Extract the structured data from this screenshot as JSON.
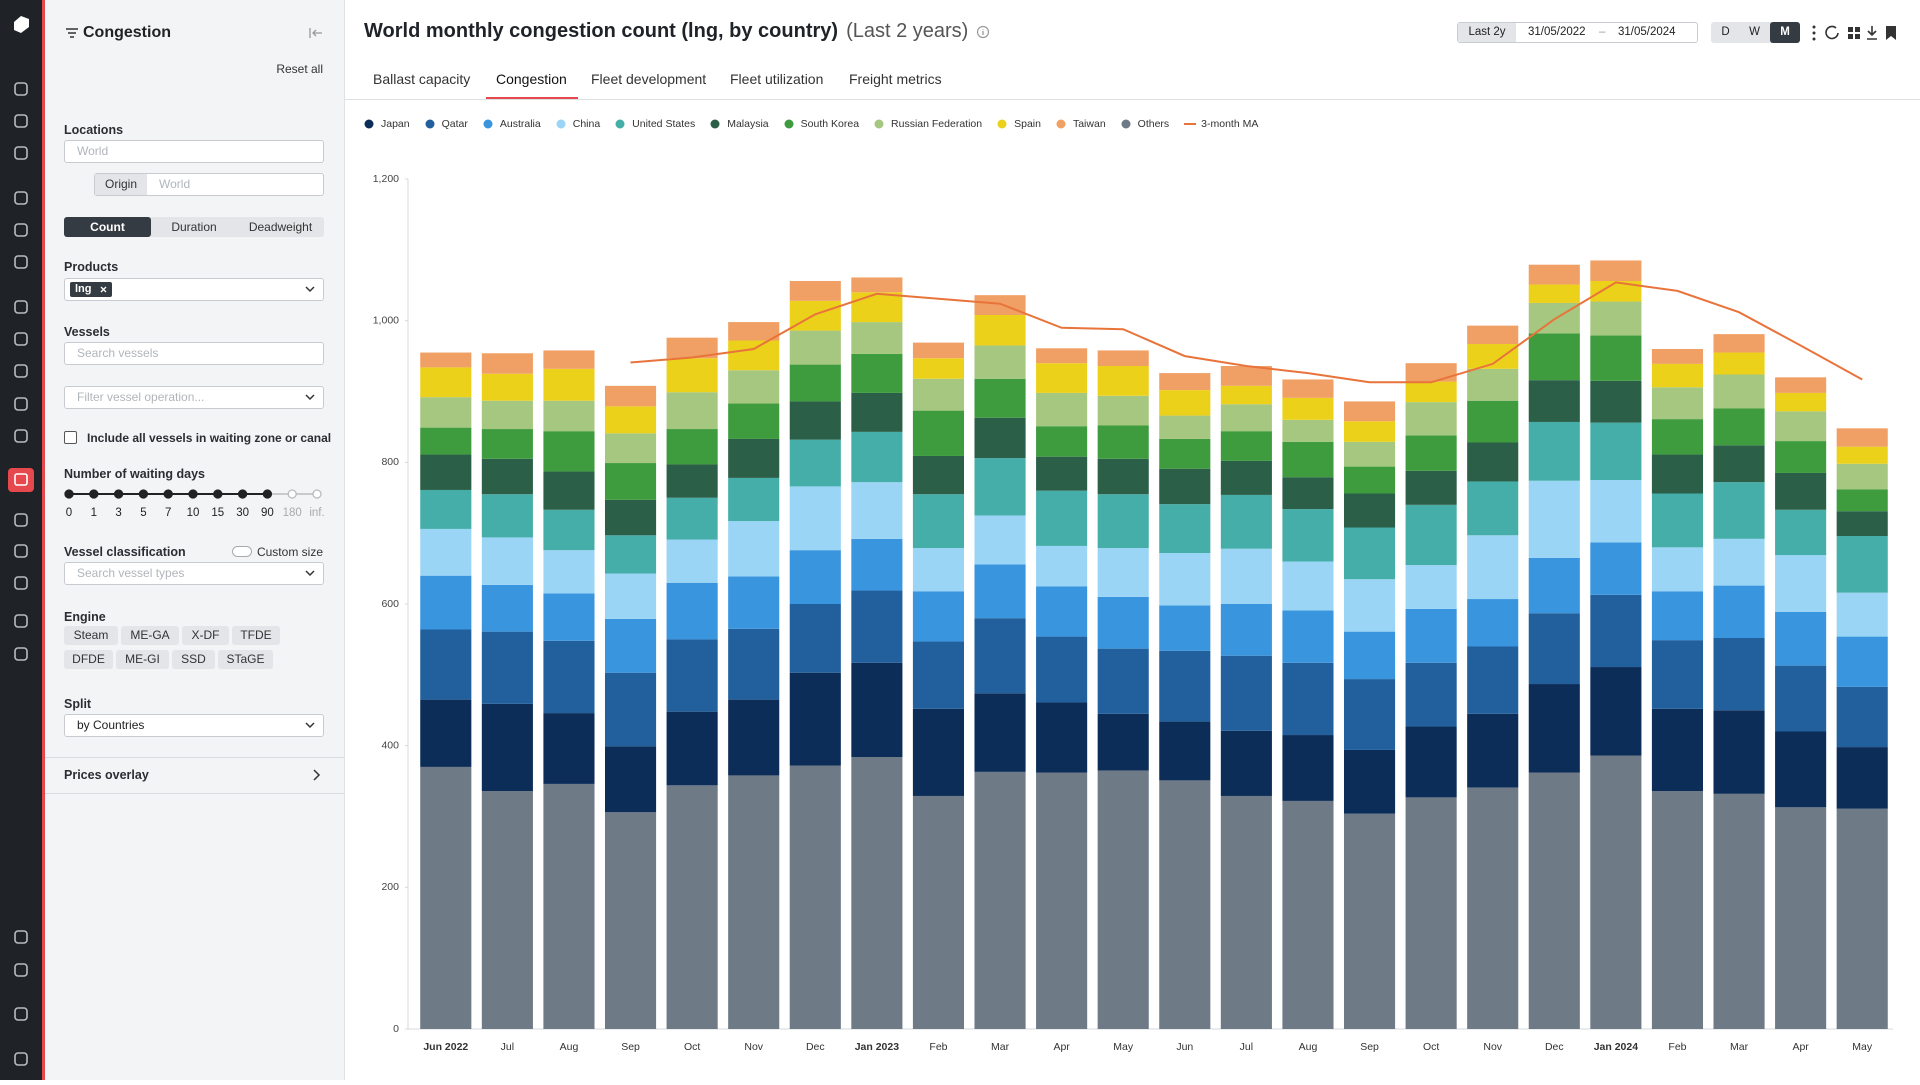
{
  "header": {
    "title": "World monthly congestion count (lng, by country)",
    "subtitle": "(Last 2 years)",
    "range": "Last 2y",
    "start": "31/05/2022",
    "dash": "–",
    "end": "31/05/2024",
    "granularity": [
      "D",
      "W",
      "M"
    ]
  },
  "tabs": [
    "Ballast capacity",
    "Congestion",
    "Fleet development",
    "Fleet utilization",
    "Freight metrics"
  ],
  "panel": {
    "title": "Congestion",
    "reset": "Reset all",
    "locations": "Locations",
    "location_placeholder": "World",
    "origin": "Origin",
    "origin_placeholder": "World",
    "metrics": [
      "Count",
      "Duration",
      "Deadweight"
    ],
    "products": "Products",
    "product_tag": "lng",
    "vessels": "Vessels",
    "vessel_search": "Search vessels",
    "operation_filter": "Filter vessel operation...",
    "checkbox": "Include all vessels in waiting zone or canal",
    "waiting_days": "Number of waiting days",
    "days": [
      "0",
      "1",
      "3",
      "5",
      "7",
      "10",
      "15",
      "30",
      "90",
      "180",
      "inf."
    ],
    "classification": "Vessel classification",
    "custom_size": "Custom size",
    "type_search": "Search vessel types",
    "engine": "Engine",
    "engines": [
      "Steam",
      "ME-GA",
      "X-DF",
      "TFDE",
      "DFDE",
      "ME-GI",
      "SSD",
      "STaGE"
    ],
    "split": "Split",
    "split_value": "by Countries",
    "prices_overlay": "Prices overlay"
  },
  "chart_data": {
    "type": "bar",
    "stacked": true,
    "categories": [
      "Jun 2022",
      "Jul",
      "Aug",
      "Sep",
      "Oct",
      "Nov",
      "Dec",
      "Jan 2023",
      "Feb",
      "Mar",
      "Apr",
      "May",
      "Jun",
      "Jul",
      "Aug",
      "Sep",
      "Oct",
      "Nov",
      "Dec",
      "Jan 2024",
      "Feb",
      "Mar",
      "Apr",
      "May"
    ],
    "ylim": [
      0,
      1200
    ],
    "yticks": [
      0,
      200,
      400,
      600,
      800,
      {
        "value": 1000,
        "label": "1,000"
      },
      {
        "value": 1200,
        "label": "1,200"
      }
    ],
    "series": [
      {
        "name": "Japan",
        "color": "#0c2d57",
        "values": [
          95,
          123,
          100,
          93,
          104,
          107,
          131,
          133,
          123,
          111,
          99,
          80,
          83,
          92,
          93,
          90,
          100,
          104,
          125,
          125,
          116,
          118,
          107,
          87
        ]
      },
      {
        "name": "Qatar",
        "color": "#22609d",
        "values": [
          99,
          102,
          102,
          104,
          102,
          100,
          97,
          102,
          95,
          106,
          93,
          92,
          100,
          106,
          102,
          100,
          90,
          95,
          100,
          102,
          97,
          102,
          93,
          85
        ]
      },
      {
        "name": "Australia",
        "color": "#3a95df",
        "values": [
          76,
          66,
          67,
          76,
          80,
          74,
          76,
          73,
          71,
          76,
          71,
          73,
          64,
          73,
          74,
          67,
          76,
          67,
          78,
          74,
          69,
          74,
          76,
          71
        ]
      },
      {
        "name": "China",
        "color": "#9ad5f6",
        "values": [
          66,
          67,
          61,
          64,
          61,
          78,
          90,
          80,
          61,
          69,
          57,
          69,
          74,
          78,
          69,
          74,
          62,
          90,
          109,
          88,
          62,
          66,
          80,
          62
        ]
      },
      {
        "name": "United States",
        "color": "#45aea9",
        "values": [
          55,
          61,
          57,
          54,
          59,
          61,
          66,
          71,
          76,
          81,
          78,
          76,
          69,
          76,
          74,
          73,
          85,
          76,
          83,
          81,
          76,
          80,
          64,
          80
        ]
      },
      {
        "name": "Malaysia",
        "color": "#2b5f47",
        "values": [
          50,
          50,
          54,
          50,
          47,
          55,
          54,
          55,
          54,
          57,
          48,
          50,
          50,
          48,
          45,
          48,
          48,
          55,
          59,
          59,
          55,
          52,
          52,
          35
        ]
      },
      {
        "name": "South Korea",
        "color": "#3e9c3f",
        "values": [
          38,
          42,
          57,
          52,
          50,
          50,
          52,
          55,
          64,
          55,
          43,
          47,
          42,
          42,
          50,
          38,
          50,
          59,
          66,
          64,
          50,
          52,
          45,
          31
        ]
      },
      {
        "name": "Russian Federation",
        "color": "#a6c77f",
        "values": [
          43,
          40,
          43,
          42,
          52,
          47,
          48,
          45,
          45,
          47,
          47,
          42,
          33,
          38,
          31,
          35,
          47,
          45,
          43,
          48,
          45,
          48,
          42,
          36
        ]
      },
      {
        "name": "Spain",
        "color": "#ecd11b",
        "values": [
          42,
          38,
          45,
          38,
          48,
          42,
          42,
          42,
          29,
          43,
          42,
          42,
          36,
          26,
          31,
          29,
          29,
          35,
          26,
          29,
          33,
          31,
          26,
          24
        ]
      },
      {
        "name": "Taiwan",
        "color": "#f0a065",
        "values": [
          21,
          29,
          26,
          29,
          29,
          26,
          28,
          21,
          22,
          28,
          21,
          22,
          24,
          28,
          26,
          28,
          26,
          26,
          28,
          29,
          21,
          26,
          22,
          26
        ]
      },
      {
        "name": "Others",
        "color": "#6f7a87",
        "values": [
          370,
          336,
          346,
          306,
          344,
          358,
          372,
          384,
          329,
          363,
          362,
          365,
          351,
          329,
          322,
          304,
          327,
          341,
          362,
          386,
          336,
          332,
          313,
          311
        ]
      },
      {
        "name": "3-month MA",
        "type": "line",
        "color": "#e8743b",
        "values": [
          null,
          null,
          null,
          941,
          948,
          960,
          1009,
          1038,
          1031,
          1024,
          990,
          988,
          950,
          936,
          926,
          913,
          913,
          939,
          1002,
          1054,
          1042,
          1012,
          965,
          917
        ]
      }
    ]
  }
}
